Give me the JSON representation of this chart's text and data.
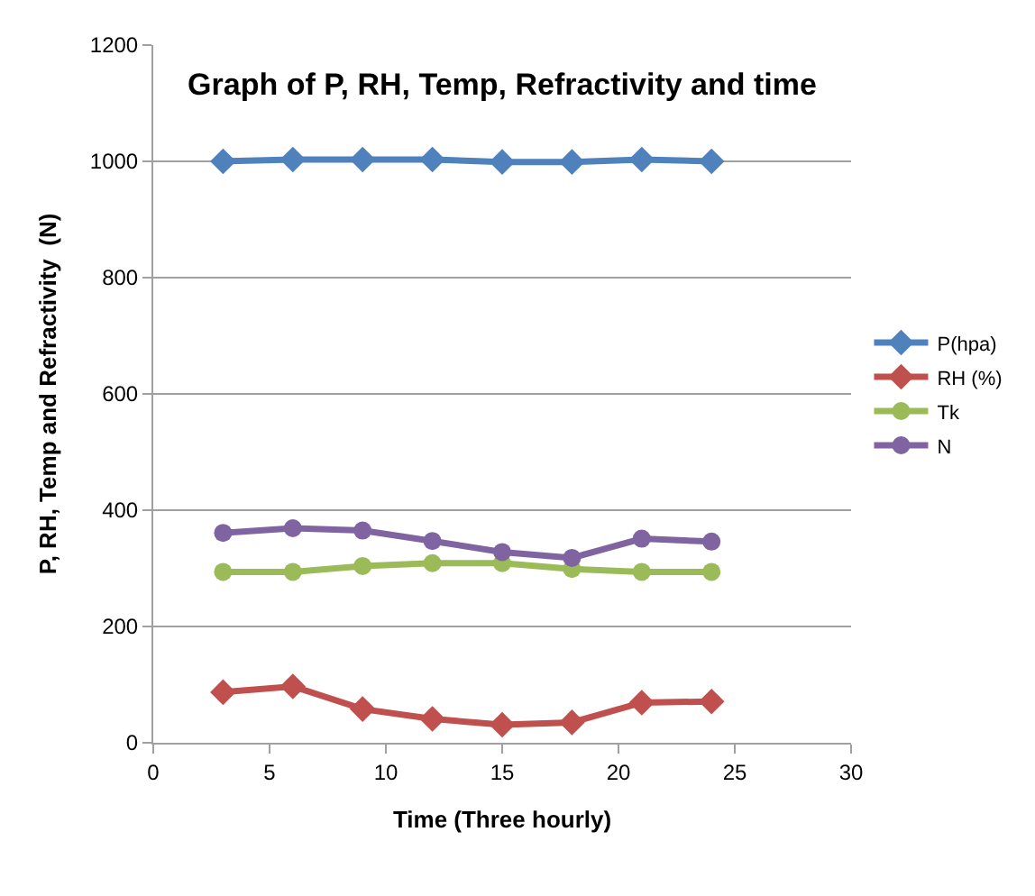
{
  "chart_data": {
    "type": "line",
    "title": "Graph of P, RH, Temp, Refractivity and time",
    "xlabel": "Time (Three hourly)",
    "ylabel": "P, RH, Temp and Refractivity  (N)",
    "x": [
      3,
      6,
      9,
      12,
      15,
      18,
      21,
      24
    ],
    "series": [
      {
        "name": "P(hpa)",
        "color": "#4f81bd",
        "marker": "diamond",
        "values": [
          1000,
          1003,
          1003,
          1003,
          999,
          999,
          1003,
          1000
        ]
      },
      {
        "name": "RH (%)",
        "color": "#c0504d",
        "marker": "diamond",
        "values": [
          87,
          97,
          58,
          41,
          31,
          35,
          69,
          71
        ]
      },
      {
        "name": "Tk",
        "color": "#9bbb59",
        "marker": "circle",
        "values": [
          294,
          294,
          304,
          309,
          309,
          299,
          294,
          294
        ]
      },
      {
        "name": "N",
        "color": "#8064a2",
        "marker": "circle",
        "values": [
          361,
          369,
          365,
          347,
          328,
          318,
          351,
          346
        ]
      }
    ],
    "xlim": [
      0,
      30
    ],
    "xticks": [
      0,
      5,
      10,
      15,
      20,
      25,
      30
    ],
    "ylim": [
      0,
      1200
    ],
    "yticks": [
      0,
      200,
      400,
      600,
      800,
      1000,
      1200
    ],
    "grid": "y",
    "legend": "right",
    "line_style": "solid"
  }
}
